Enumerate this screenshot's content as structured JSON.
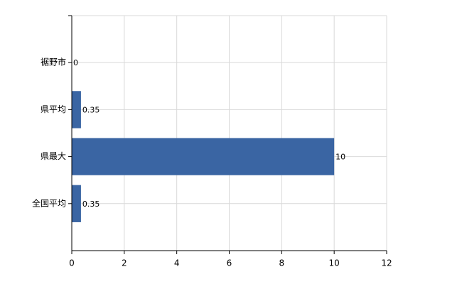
{
  "chart_data": {
    "type": "hbar",
    "categories": [
      "裾野市",
      "県平均",
      "県最大",
      "全国平均"
    ],
    "values": [
      0,
      0.35,
      10,
      0.35
    ],
    "color": "#3a65a3",
    "xlim": [
      0,
      12
    ],
    "xticks": [
      0,
      2,
      4,
      6,
      8,
      10,
      12
    ],
    "grid": true
  }
}
